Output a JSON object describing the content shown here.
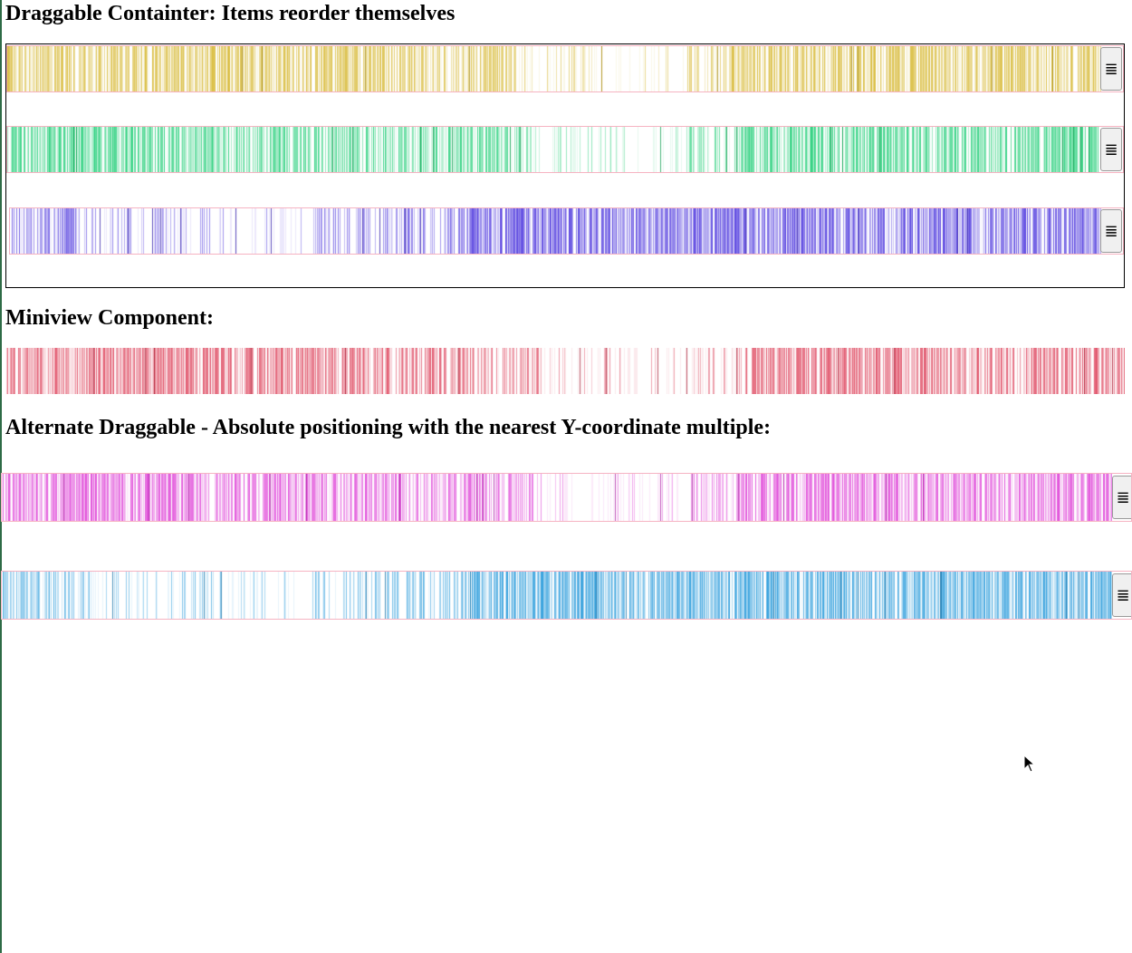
{
  "headings": {
    "draggable": "Draggable Containter: Items reorder themselves",
    "miniview": "Miniview Component:",
    "alternate": "Alternate Draggable - Absolute positioning with the nearest Y-coordinate multiple:"
  },
  "handle_glyph": "≣",
  "strips": [
    {
      "color": "#d9bc3d",
      "pattern": "a"
    },
    {
      "color": "#2ed17f",
      "pattern": "a"
    },
    {
      "color": "#5a45e0",
      "pattern": "b"
    },
    {
      "color": "#e05067",
      "pattern": "a"
    },
    {
      "color": "#e04ad9",
      "pattern": "a"
    },
    {
      "color": "#3aa3de",
      "pattern": "b"
    }
  ],
  "colors": {
    "strip_border": "#f6b3c2",
    "container_border": "#000000"
  }
}
